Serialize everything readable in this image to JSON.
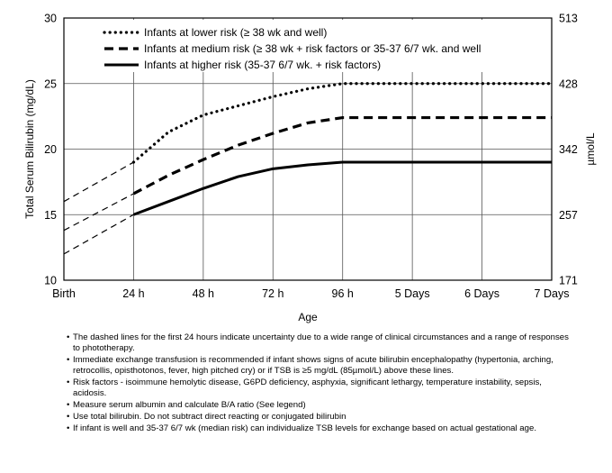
{
  "chart_data": {
    "type": "line",
    "xlabel": "Age",
    "ylabel": "Total Serum Bilirubin (mg/dL)",
    "y2label": "µmol/L",
    "categories": [
      "Birth",
      "24 h",
      "48 h",
      "72 h",
      "96 h",
      "5 Days",
      "6 Days",
      "7 Days"
    ],
    "x_numeric": [
      0,
      1,
      2,
      3,
      4,
      5,
      6,
      7
    ],
    "ylim": [
      10,
      30
    ],
    "yticks": [
      10,
      15,
      20,
      25,
      30
    ],
    "y2ticks": [
      "171",
      "257",
      "342",
      "428",
      "513"
    ],
    "grid": true,
    "legend_position": "top-left",
    "series": [
      {
        "name": "Infants at lower risk (≥ 38 wk and well)",
        "style": "dotted",
        "x": [
          1,
          1.5,
          2,
          2.5,
          3,
          3.5,
          4,
          5,
          6,
          7
        ],
        "y": [
          19,
          21.3,
          22.6,
          23.3,
          24,
          24.6,
          25,
          25,
          25,
          25
        ],
        "uncertain_x": [
          0,
          1
        ],
        "uncertain_y": [
          16,
          19
        ]
      },
      {
        "name": "Infants at medium risk (≥ 38 wk + risk factors or 35-37 6/7 wk. and well",
        "style": "dashed",
        "x": [
          1,
          1.5,
          2,
          2.5,
          3,
          3.5,
          4,
          5,
          6,
          7
        ],
        "y": [
          16.6,
          18,
          19.2,
          20.3,
          21.2,
          22,
          22.4,
          22.4,
          22.4,
          22.4
        ],
        "uncertain_x": [
          0,
          1
        ],
        "uncertain_y": [
          13.8,
          16.6
        ]
      },
      {
        "name": "Infants at higher risk (35-37 6/7 wk. + risk factors)",
        "style": "solid",
        "x": [
          1,
          1.5,
          2,
          2.5,
          3,
          3.5,
          4,
          5,
          6,
          7
        ],
        "y": [
          15,
          16,
          17,
          17.9,
          18.5,
          18.8,
          19,
          19,
          19,
          19
        ],
        "uncertain_x": [
          0,
          1
        ],
        "uncertain_y": [
          12,
          15
        ]
      }
    ]
  },
  "notes": [
    "The dashed lines for the first 24 hours indicate uncertainty due to a wide range of clinical circumstances and a range of responses to phototherapy.",
    "Immediate exchange transfusion is recommended if infant shows signs of acute bilirubin encephalopathy (hypertonia, arching, retrocollis, opisthotonos, fever, high pitched cry) or if TSB is ≥5 mg/dL (85µmol/L) above these lines.",
    "Risk factors - isoimmune hemolytic disease, G6PD deficiency, asphyxia, significant lethargy, temperature instability, sepsis, acidosis.",
    "Measure serum albumin and calculate B/A ratio (See legend)",
    "Use total bilirubin.  Do not subtract direct reacting or conjugated bilirubin",
    "If infant is well and 35-37 6/7 wk (median risk) can individualize TSB levels for exchange based on actual gestational age."
  ]
}
